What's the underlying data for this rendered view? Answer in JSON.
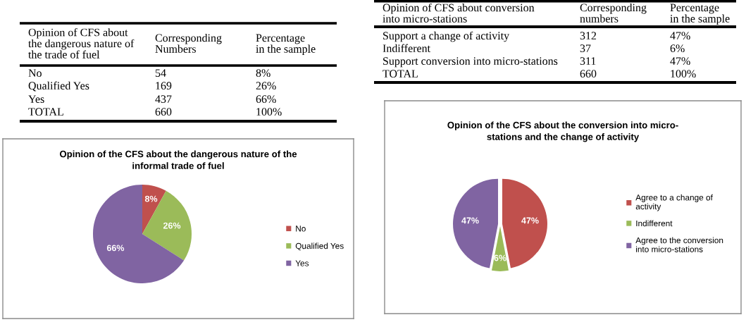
{
  "chart_data": [
    {
      "type": "other",
      "ylabel": "Opinion of CFS about\nthe dangerous nature of\nthe trade of fuel",
      "categories": [
        "No",
        "Qualified Yes",
        "Yes",
        "TOTAL"
      ],
      "data_labels": true,
      "series": [
        {
          "name": "Corresponding\nNumbers",
          "values": [
            54,
            169,
            437,
            660
          ]
        },
        {
          "name": "Percentage\nin the sample",
          "values": [
            8,
            26,
            66,
            100
          ],
          "value_labels": [
            "8%",
            "26%",
            "66%",
            "100%"
          ]
        }
      ]
    },
    {
      "type": "other",
      "ylabel": "Opinion of CFS about conversion\ninto micro-stations",
      "categories": [
        "Support a change of activity",
        "Indifferent",
        "Support conversion into micro-stations",
        "TOTAL"
      ],
      "data_labels": true,
      "series": [
        {
          "name": "Corresponding\nnumbers",
          "values": [
            312,
            37,
            311,
            660
          ]
        },
        {
          "name": "Percentage\nin the sample",
          "values": [
            47,
            6,
            47,
            100
          ],
          "value_labels": [
            "47%",
            "6%",
            "47%",
            "100%"
          ]
        }
      ]
    },
    {
      "type": "pie",
      "title": "Opinion of the CFS about the dangerous nature of the\ninformal trade of fuel",
      "categories": [
        "No",
        "Qualified Yes",
        "Yes"
      ],
      "values": [
        8,
        26,
        66
      ],
      "colors": [
        "#c0504d",
        "#9bbb59",
        "#8064a2"
      ],
      "value_labels": [
        "8%",
        "26%",
        "66%"
      ],
      "legend": "right"
    },
    {
      "type": "pie",
      "title": "Opinion of the CFS about the conversion into micro-\nstations and the change of activity",
      "categories": [
        "Agree to a change of\nactivity",
        "Indifferent",
        "Agree to the conversion\ninto micro-stations"
      ],
      "values": [
        47,
        6,
        47
      ],
      "colors": [
        "#c0504d",
        "#9bbb59",
        "#8064a2"
      ],
      "value_labels": [
        "47%",
        "6%",
        "47%"
      ],
      "legend": "right"
    }
  ]
}
